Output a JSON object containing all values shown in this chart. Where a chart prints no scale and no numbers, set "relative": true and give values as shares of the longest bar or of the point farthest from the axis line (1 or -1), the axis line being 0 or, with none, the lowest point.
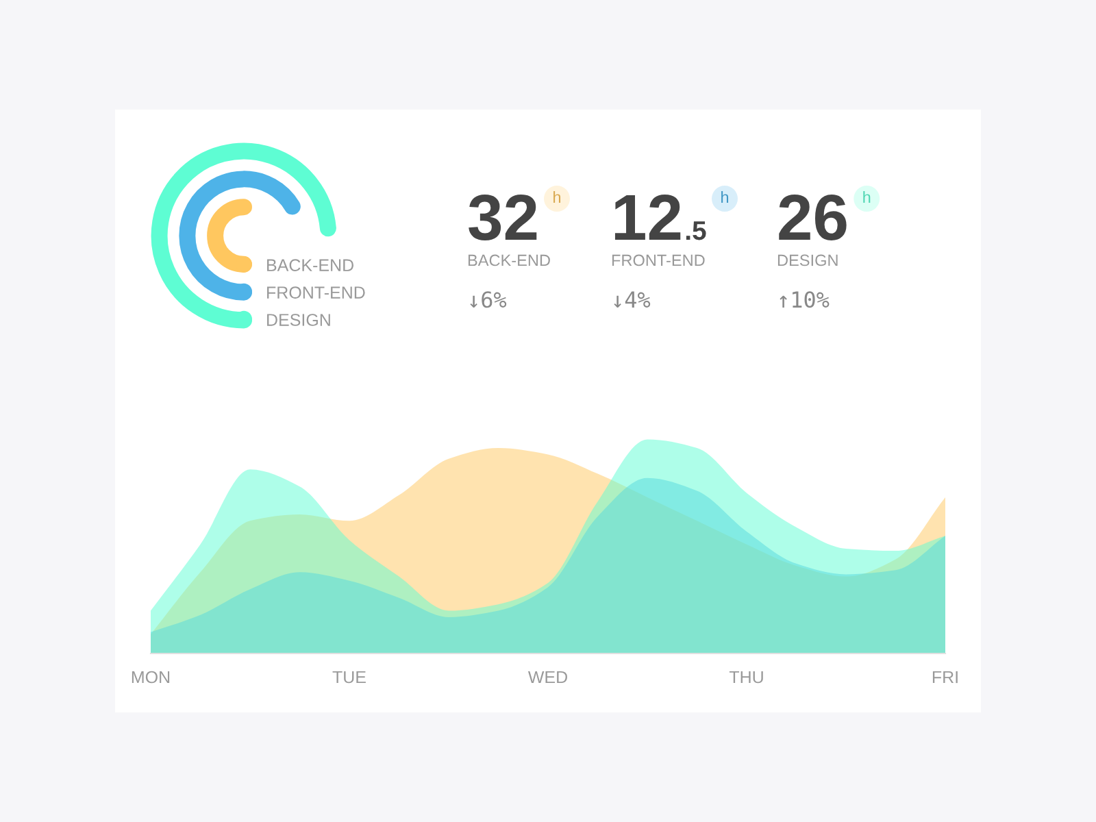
{
  "chart_data": [
    {
      "type": "other",
      "annotations": [
        "32",
        "h",
        "BACK-END",
        "↓6%",
        "12.5",
        "h",
        "FRONT-END",
        "↓4%",
        "26",
        "h",
        "DESIGN",
        "↑10%"
      ],
      "colors": [
        "#ffc75f",
        "#4eb3e8",
        "#5efdd3"
      ]
    },
    {
      "type": "area",
      "relative": true,
      "legend": "top left",
      "categories": [
        "MON",
        null,
        null,
        null,
        "TUE",
        null,
        null,
        null,
        "WED",
        null,
        null,
        null,
        "THU",
        null,
        null,
        null,
        "FRI"
      ],
      "series": [
        {
          "name": "BACK-END",
          "color": "#ffc75f",
          "values": [
            0.09,
            0.38,
            0.62,
            0.65,
            0.62,
            0.74,
            0.91,
            0.96,
            0.93,
            0.84,
            0.73,
            0.62,
            0.51,
            0.41,
            0.36,
            0.44,
            0.73
          ]
        },
        {
          "name": "FRONT-END",
          "color": "#4eb3e8",
          "values": [
            0.1,
            0.18,
            0.3,
            0.38,
            0.34,
            0.26,
            0.17,
            0.2,
            0.31,
            0.64,
            0.82,
            0.76,
            0.57,
            0.42,
            0.37,
            0.39,
            0.55
          ]
        },
        {
          "name": "DESIGN",
          "color": "#5efdd3",
          "values": [
            0.2,
            0.51,
            0.86,
            0.78,
            0.53,
            0.36,
            0.2,
            0.23,
            0.33,
            0.71,
            1,
            0.96,
            0.75,
            0.59,
            0.49,
            0.48,
            0.55
          ]
        }
      ]
    }
  ]
}
